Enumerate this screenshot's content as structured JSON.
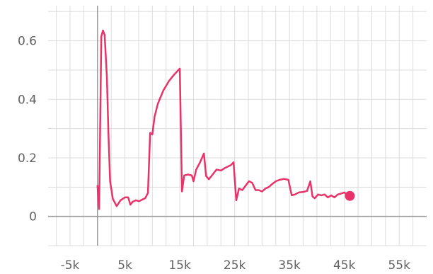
{
  "chart_data": {
    "type": "line",
    "title": "",
    "xlabel": "",
    "ylabel": "",
    "xlim": [
      -9000,
      60000
    ],
    "ylim": [
      -0.1,
      0.72
    ],
    "grid": true,
    "x_ticks": [
      -5000,
      0,
      5000,
      10000,
      15000,
      20000,
      25000,
      30000,
      35000,
      40000,
      45000,
      50000,
      55000
    ],
    "x_tick_labels": [
      "-5k",
      "",
      "5k",
      "",
      "15k",
      "",
      "25k",
      "",
      "35k",
      "",
      "45k",
      "",
      "55k"
    ],
    "x_minor_ticks": [
      -7500,
      -2500,
      2500,
      7500,
      12500,
      17500,
      22500,
      27500,
      32500,
      37500,
      42500,
      47500,
      52500,
      57500
    ],
    "y_ticks": [
      0,
      0.2,
      0.4,
      0.6
    ],
    "y_tick_labels": [
      "0",
      "0.2",
      "0.4",
      "0.6"
    ],
    "y_minor_ticks": [
      -0.1,
      0.1,
      0.3,
      0.5,
      0.7
    ],
    "colors": {
      "series": "#e8336a",
      "grid": "#dddddd",
      "zero_axis": "#999999",
      "ticks": "#616161"
    },
    "series": [
      {
        "name": "",
        "x": [
          0,
          300,
          700,
          1000,
          1300,
          1700,
          2000,
          2300,
          2800,
          3500,
          4200,
          5000,
          5600,
          6000,
          6400,
          7000,
          7600,
          8200,
          8700,
          9200,
          9600,
          10000,
          10400,
          11000,
          12000,
          13000,
          14000,
          15000,
          15400,
          15800,
          16500,
          17200,
          17500,
          18000,
          18700,
          19400,
          19800,
          20300,
          21000,
          21700,
          22500,
          23400,
          24300,
          24800,
          25300,
          25800,
          26400,
          27000,
          27600,
          28200,
          28800,
          29400,
          30000,
          30600,
          31200,
          31800,
          32500,
          33200,
          34000,
          34800,
          35400,
          36000,
          36700,
          37400,
          38200,
          38800,
          39200,
          39600,
          40200,
          40800,
          41400,
          42000,
          42600,
          43200,
          43800,
          44400,
          45000,
          45400,
          46000
        ],
        "y": [
          0.105,
          0.025,
          0.615,
          0.635,
          0.62,
          0.48,
          0.28,
          0.12,
          0.06,
          0.035,
          0.055,
          0.065,
          0.065,
          0.04,
          0.05,
          0.055,
          0.052,
          0.058,
          0.062,
          0.08,
          0.285,
          0.28,
          0.34,
          0.385,
          0.43,
          0.462,
          0.485,
          0.505,
          0.085,
          0.14,
          0.143,
          0.14,
          0.12,
          0.16,
          0.185,
          0.215,
          0.138,
          0.127,
          0.143,
          0.16,
          0.157,
          0.167,
          0.175,
          0.185,
          0.055,
          0.095,
          0.09,
          0.105,
          0.12,
          0.115,
          0.09,
          0.09,
          0.085,
          0.095,
          0.1,
          0.11,
          0.12,
          0.125,
          0.128,
          0.125,
          0.072,
          0.075,
          0.082,
          0.083,
          0.087,
          0.12,
          0.068,
          0.062,
          0.075,
          0.072,
          0.075,
          0.065,
          0.072,
          0.065,
          0.075,
          0.078,
          0.082,
          0.075,
          0.07
        ]
      }
    ]
  }
}
